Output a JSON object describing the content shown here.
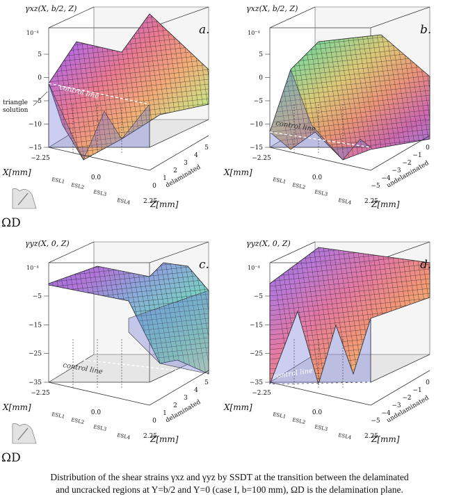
{
  "caption": {
    "line1": "Distribution of the shear strains γxz and γyz by SSDT at the transition between the delaminated",
    "line2": "and uncracked regions at Y=b/2 and Y=0 (case I, b=100 mm), ΩD is the delamination plane."
  },
  "panels": [
    {
      "id": "a",
      "letter": "a.",
      "zlabel": "γxz(X, b/2, Z)",
      "exponent": "10⁻⁴",
      "zticks": [
        "5",
        "0",
        "−5",
        "−10",
        "−15"
      ],
      "xlabel": "X[mm]",
      "xticks": [
        "−2.25",
        "0.0",
        "2.25"
      ],
      "esl": [
        "ESL1",
        "ESL2",
        "ESL3",
        "ESL4"
      ],
      "ylabel": "Z[mm]",
      "yticks": [
        "0",
        "1",
        "2",
        "3",
        "4",
        "5"
      ],
      "region": "delaminated",
      "control_line": "control line",
      "annotation": [
        "triangle",
        "solution"
      ],
      "omega": "ΩD",
      "colors": [
        "#6c5cd6",
        "#b35ad6",
        "#e86b86",
        "#f2a36a",
        "#c8e07a",
        "#7be69a"
      ]
    },
    {
      "id": "b",
      "letter": "b.",
      "zlabel": "γxz(X, b/2, Z)",
      "exponent": "10⁻⁴",
      "zticks": [
        "5",
        "0",
        "−5",
        "−10",
        "−15"
      ],
      "xlabel": "X[mm]",
      "xticks": [
        "−2.25",
        "0.0",
        "2.25"
      ],
      "esl": [
        "ESL1",
        "ESL2",
        "ESL3",
        "ESL4"
      ],
      "ylabel": "Z[mm]",
      "yticks": [
        "−5",
        "−4",
        "−3",
        "−2",
        "−1",
        "0"
      ],
      "region": "undelaminated",
      "control_line": "control line",
      "colors": [
        "#5fb0d8",
        "#7fd08a",
        "#d8c46a",
        "#e98a6a",
        "#c95aa8",
        "#8a6fd8"
      ]
    },
    {
      "id": "c",
      "letter": "c.",
      "zlabel": "γyz(X, 0, Z)",
      "exponent": "10⁻⁴",
      "zticks": [
        "−5",
        "−15",
        "−25",
        "−35"
      ],
      "xlabel": "X[mm]",
      "xticks": [
        "−2.25",
        "0.0",
        "2.25"
      ],
      "esl": [
        "ESL1",
        "ESL2",
        "ESL3",
        "ESL4"
      ],
      "ylabel": "Z[mm]",
      "yticks": [
        "0",
        "1",
        "2",
        "3",
        "4",
        "5"
      ],
      "region": "delaminated",
      "control_line": "control line",
      "omega": "ΩD",
      "colors": [
        "#8e5ad8",
        "#a868d4",
        "#7fa0d8",
        "#6fc7c0",
        "#86e2a6",
        "#c6f0a0"
      ]
    },
    {
      "id": "d",
      "letter": "d.",
      "zlabel": "γyz(X, 0, Z)",
      "exponent": "10⁻⁴",
      "zticks": [
        "−5",
        "−15",
        "−25",
        "−35"
      ],
      "xlabel": "X[mm]",
      "xticks": [
        "−2.25",
        "0.0",
        "2.25"
      ],
      "esl": [
        "ESL1",
        "ESL2",
        "ESL3",
        "ESL4"
      ],
      "ylabel": "Z[mm]",
      "yticks": [
        "−5",
        "−4",
        "−3",
        "−2",
        "−1",
        "0"
      ],
      "region": "undelaminated",
      "control_line": "control line",
      "colors": [
        "#8a62d8",
        "#b469d0",
        "#e06a9a",
        "#f08a6a",
        "#f2c06a",
        "#f2ea88"
      ]
    }
  ]
}
